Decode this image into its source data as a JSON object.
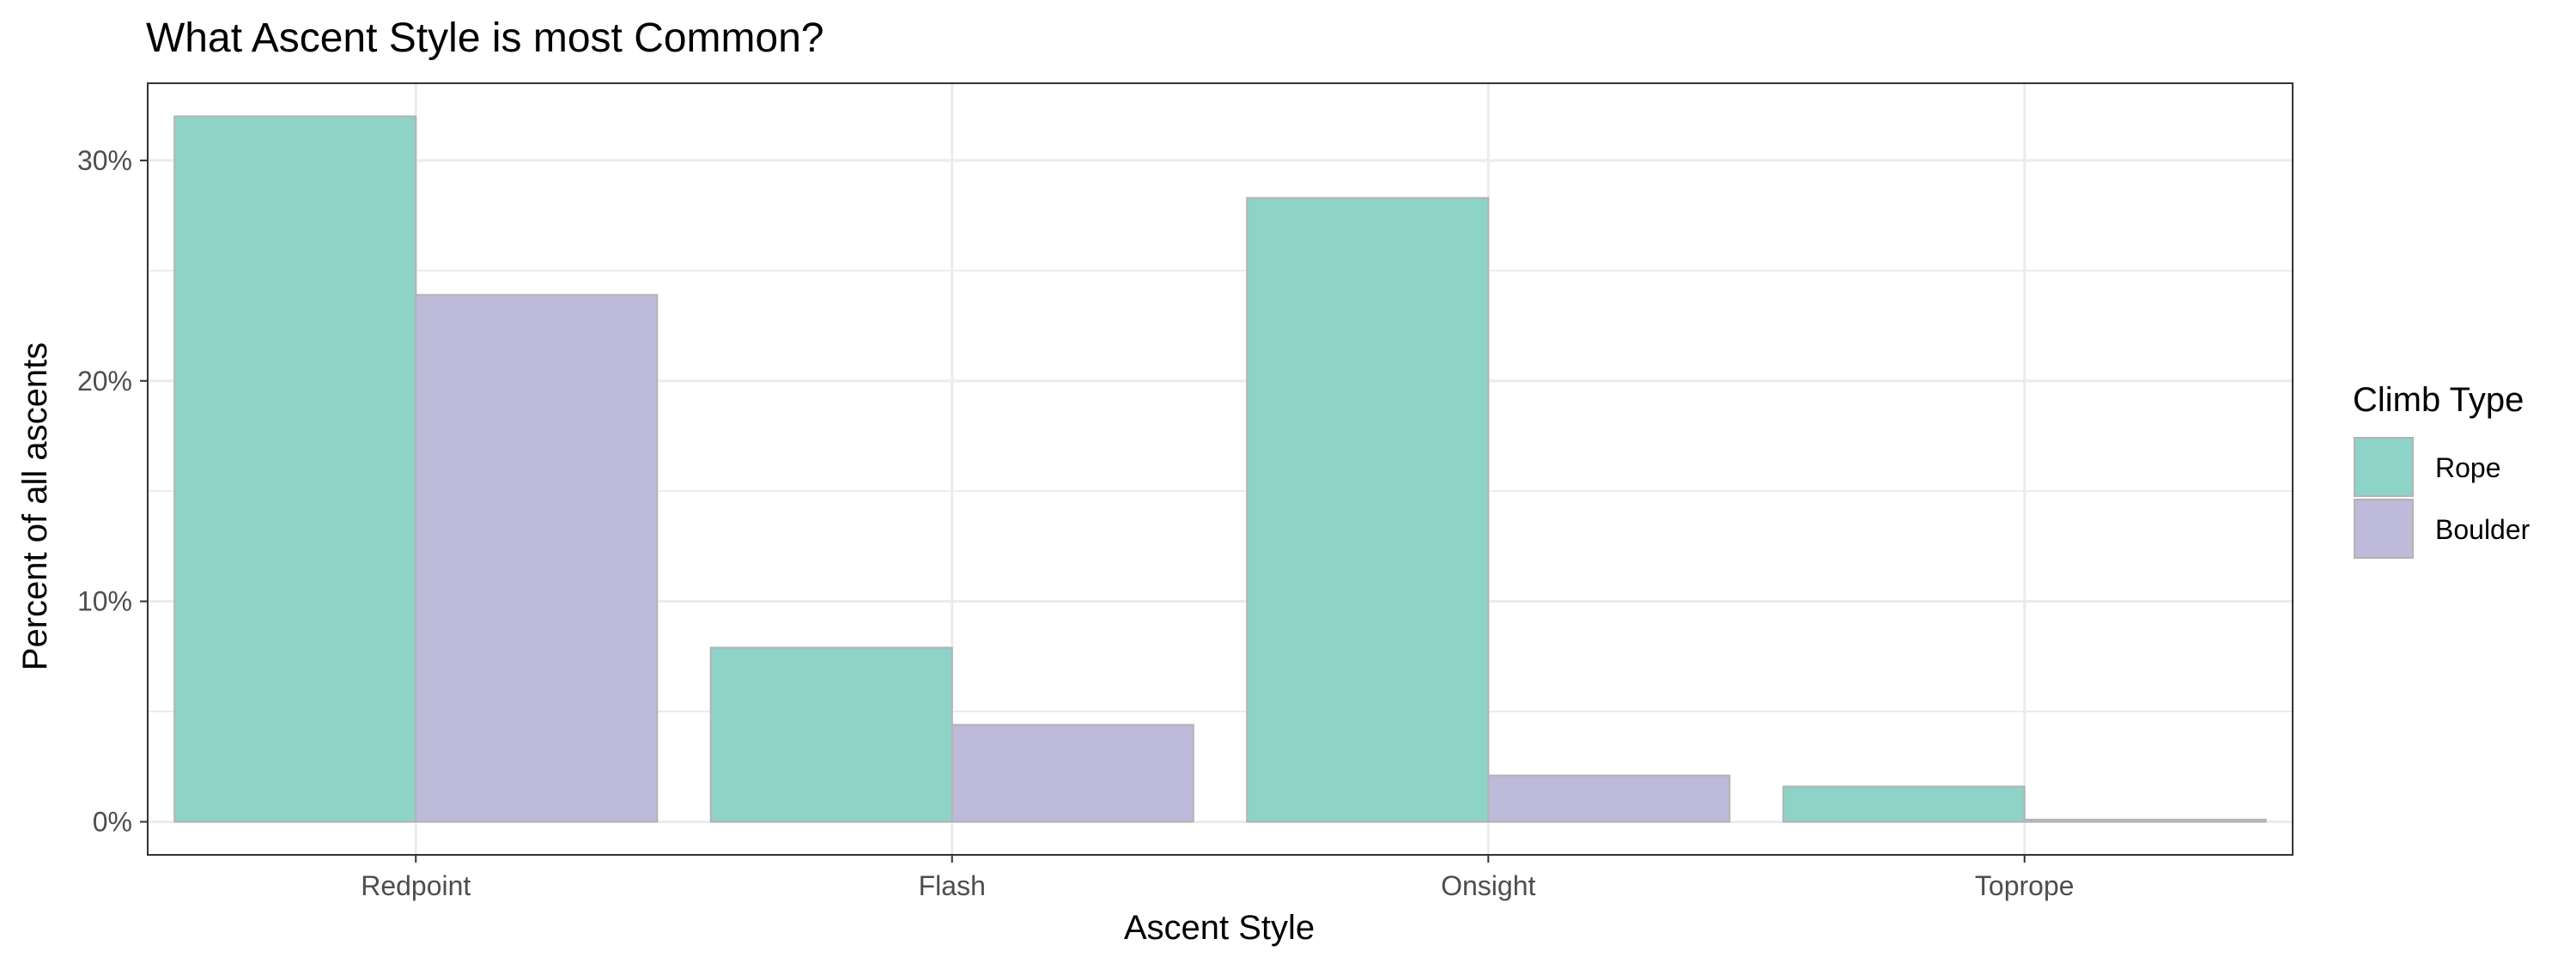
{
  "chart_data": {
    "type": "bar",
    "title": "What Ascent Style is most Common?",
    "xlabel": "Ascent Style",
    "ylabel": "Percent of all ascents",
    "categories": [
      "Redpoint",
      "Flash",
      "Onsight",
      "Toprope"
    ],
    "series": [
      {
        "name": "Rope",
        "color": "#8ed3c7",
        "values": [
          32.0,
          7.9,
          28.3,
          1.6
        ]
      },
      {
        "name": "Boulder",
        "color": "#bebada",
        "values": [
          23.9,
          4.4,
          2.1,
          0.1
        ]
      }
    ],
    "ylim": [
      -1.5,
      33.5
    ],
    "yticks": [
      0,
      10,
      20,
      30
    ],
    "ytick_labels": [
      "0%",
      "10%",
      "20%",
      "30%"
    ],
    "grid": true,
    "legend": {
      "title": "Climb Type",
      "position": "right"
    },
    "colors": {
      "bar_outline": "#b3b3b3",
      "grid": "#ebebeb",
      "panel_border": "#333333"
    }
  }
}
